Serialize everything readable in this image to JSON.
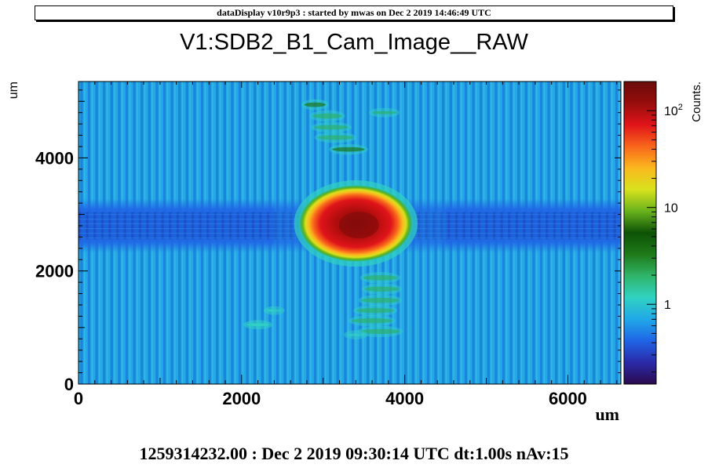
{
  "header": {
    "text": "dataDisplay v10r9p3 : started by mwas on Dec  2 2019 14:46:49 UTC"
  },
  "footer": {
    "text": "1259314232.00 : Dec  2 2019 09:30:14 UTC dt:1.00s nAv:15"
  },
  "chart_data": {
    "type": "heatmap",
    "title": "V1:SDB2_B1_Cam_Image__RAW",
    "xlabel": "um",
    "ylabel": "um",
    "zlabel": "Counts.",
    "xlim": [
      0,
      6650
    ],
    "ylim": [
      0,
      5350
    ],
    "x_ticks": [
      {
        "value": 0,
        "label": "0"
      },
      {
        "value": 2000,
        "label": "2000"
      },
      {
        "value": 4000,
        "label": "4000"
      },
      {
        "value": 6000,
        "label": "6000"
      }
    ],
    "y_ticks": [
      {
        "value": 0,
        "label": "0"
      },
      {
        "value": 2000,
        "label": "2000"
      },
      {
        "value": 4000,
        "label": "4000"
      }
    ],
    "z_scale": "log",
    "z_range": [
      0.15,
      200
    ],
    "z_ticks": [
      {
        "value": 1,
        "base": "1",
        "exp": ""
      },
      {
        "value": 10,
        "base": "10",
        "exp": ""
      },
      {
        "value": 100,
        "base": "10",
        "exp": "2"
      }
    ],
    "colormap": [
      "#2a0a4e",
      "#2a2aa8",
      "#1f64e6",
      "#20a8e8",
      "#31d2c2",
      "#2fb56a",
      "#1f7a18",
      "#0d5206",
      "#68b21c",
      "#d8e21d",
      "#fbb81e",
      "#f8651b",
      "#e0141a",
      "#960d0c",
      "#6a0c0a"
    ],
    "background_level": 2.2,
    "features": [
      {
        "name": "main spot",
        "x": 3400,
        "y": 2840,
        "rx": 700,
        "ry": 680,
        "peak": 200
      },
      {
        "name": "horizontal band",
        "y": 2800,
        "half_width": 480,
        "level": 1.1
      },
      {
        "name": "upper fringes",
        "x": 3400,
        "y": 4300,
        "level": 10
      },
      {
        "name": "lower fringes",
        "x": 3700,
        "y": 1500,
        "level": 10
      }
    ]
  }
}
